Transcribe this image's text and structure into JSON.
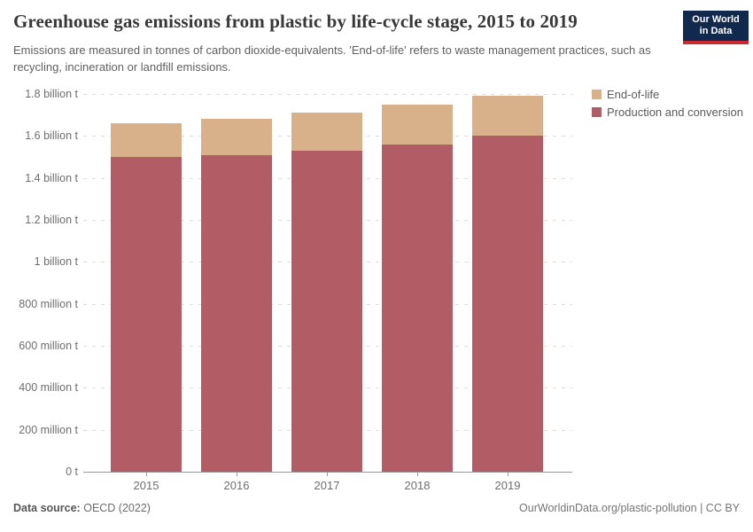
{
  "header": {
    "title": "Greenhouse gas emissions from plastic by life-cycle stage, 2015 to 2019",
    "subtitle": "Emissions are measured in tonnes of carbon dioxide-equivalents. 'End-of-life' refers to waste management practices, such as recycling, incineration or landfill emissions.",
    "logo_line1": "Our World",
    "logo_line2": "in Data",
    "logo_bg_color": "#12294e",
    "logo_accent_color": "#ca2b33"
  },
  "chart_data": {
    "type": "bar",
    "stacked": true,
    "title": "Greenhouse gas emissions from plastic by life-cycle stage, 2015 to 2019",
    "unit": "tonnes of CO2-equivalents",
    "categories": [
      "2015",
      "2016",
      "2017",
      "2018",
      "2019"
    ],
    "series": [
      {
        "name": "Production and conversion",
        "color": "#b25d66",
        "values": [
          1.5,
          1.51,
          1.53,
          1.56,
          1.6
        ]
      },
      {
        "name": "End-of-life",
        "color": "#d8b089",
        "values": [
          0.16,
          0.17,
          0.18,
          0.19,
          0.19
        ]
      }
    ],
    "totals": [
      1.66,
      1.68,
      1.71,
      1.75,
      1.79
    ],
    "ylim": [
      0,
      1.8
    ],
    "grid": "horizontal dashed",
    "legend_position": "top-right",
    "legend_order": [
      "End-of-life",
      "Production and conversion"
    ],
    "yticks": [
      {
        "value": 1.8,
        "label": "1.8 billion t"
      },
      {
        "value": 1.6,
        "label": "1.6 billion t"
      },
      {
        "value": 1.4,
        "label": "1.4 billion t"
      },
      {
        "value": 1.2,
        "label": "1.2 billion t"
      },
      {
        "value": 1.0,
        "label": "1 billion t"
      },
      {
        "value": 0.8,
        "label": "800 million t"
      },
      {
        "value": 0.6,
        "label": "600 million t"
      },
      {
        "value": 0.4,
        "label": "400 million t"
      },
      {
        "value": 0.2,
        "label": "200 million t"
      },
      {
        "value": 0,
        "label": "0 t"
      }
    ]
  },
  "footer": {
    "source_label": "Data source:",
    "source_value": "OECD (2022)",
    "attribution": "OurWorldinData.org/plastic-pollution | CC BY"
  }
}
